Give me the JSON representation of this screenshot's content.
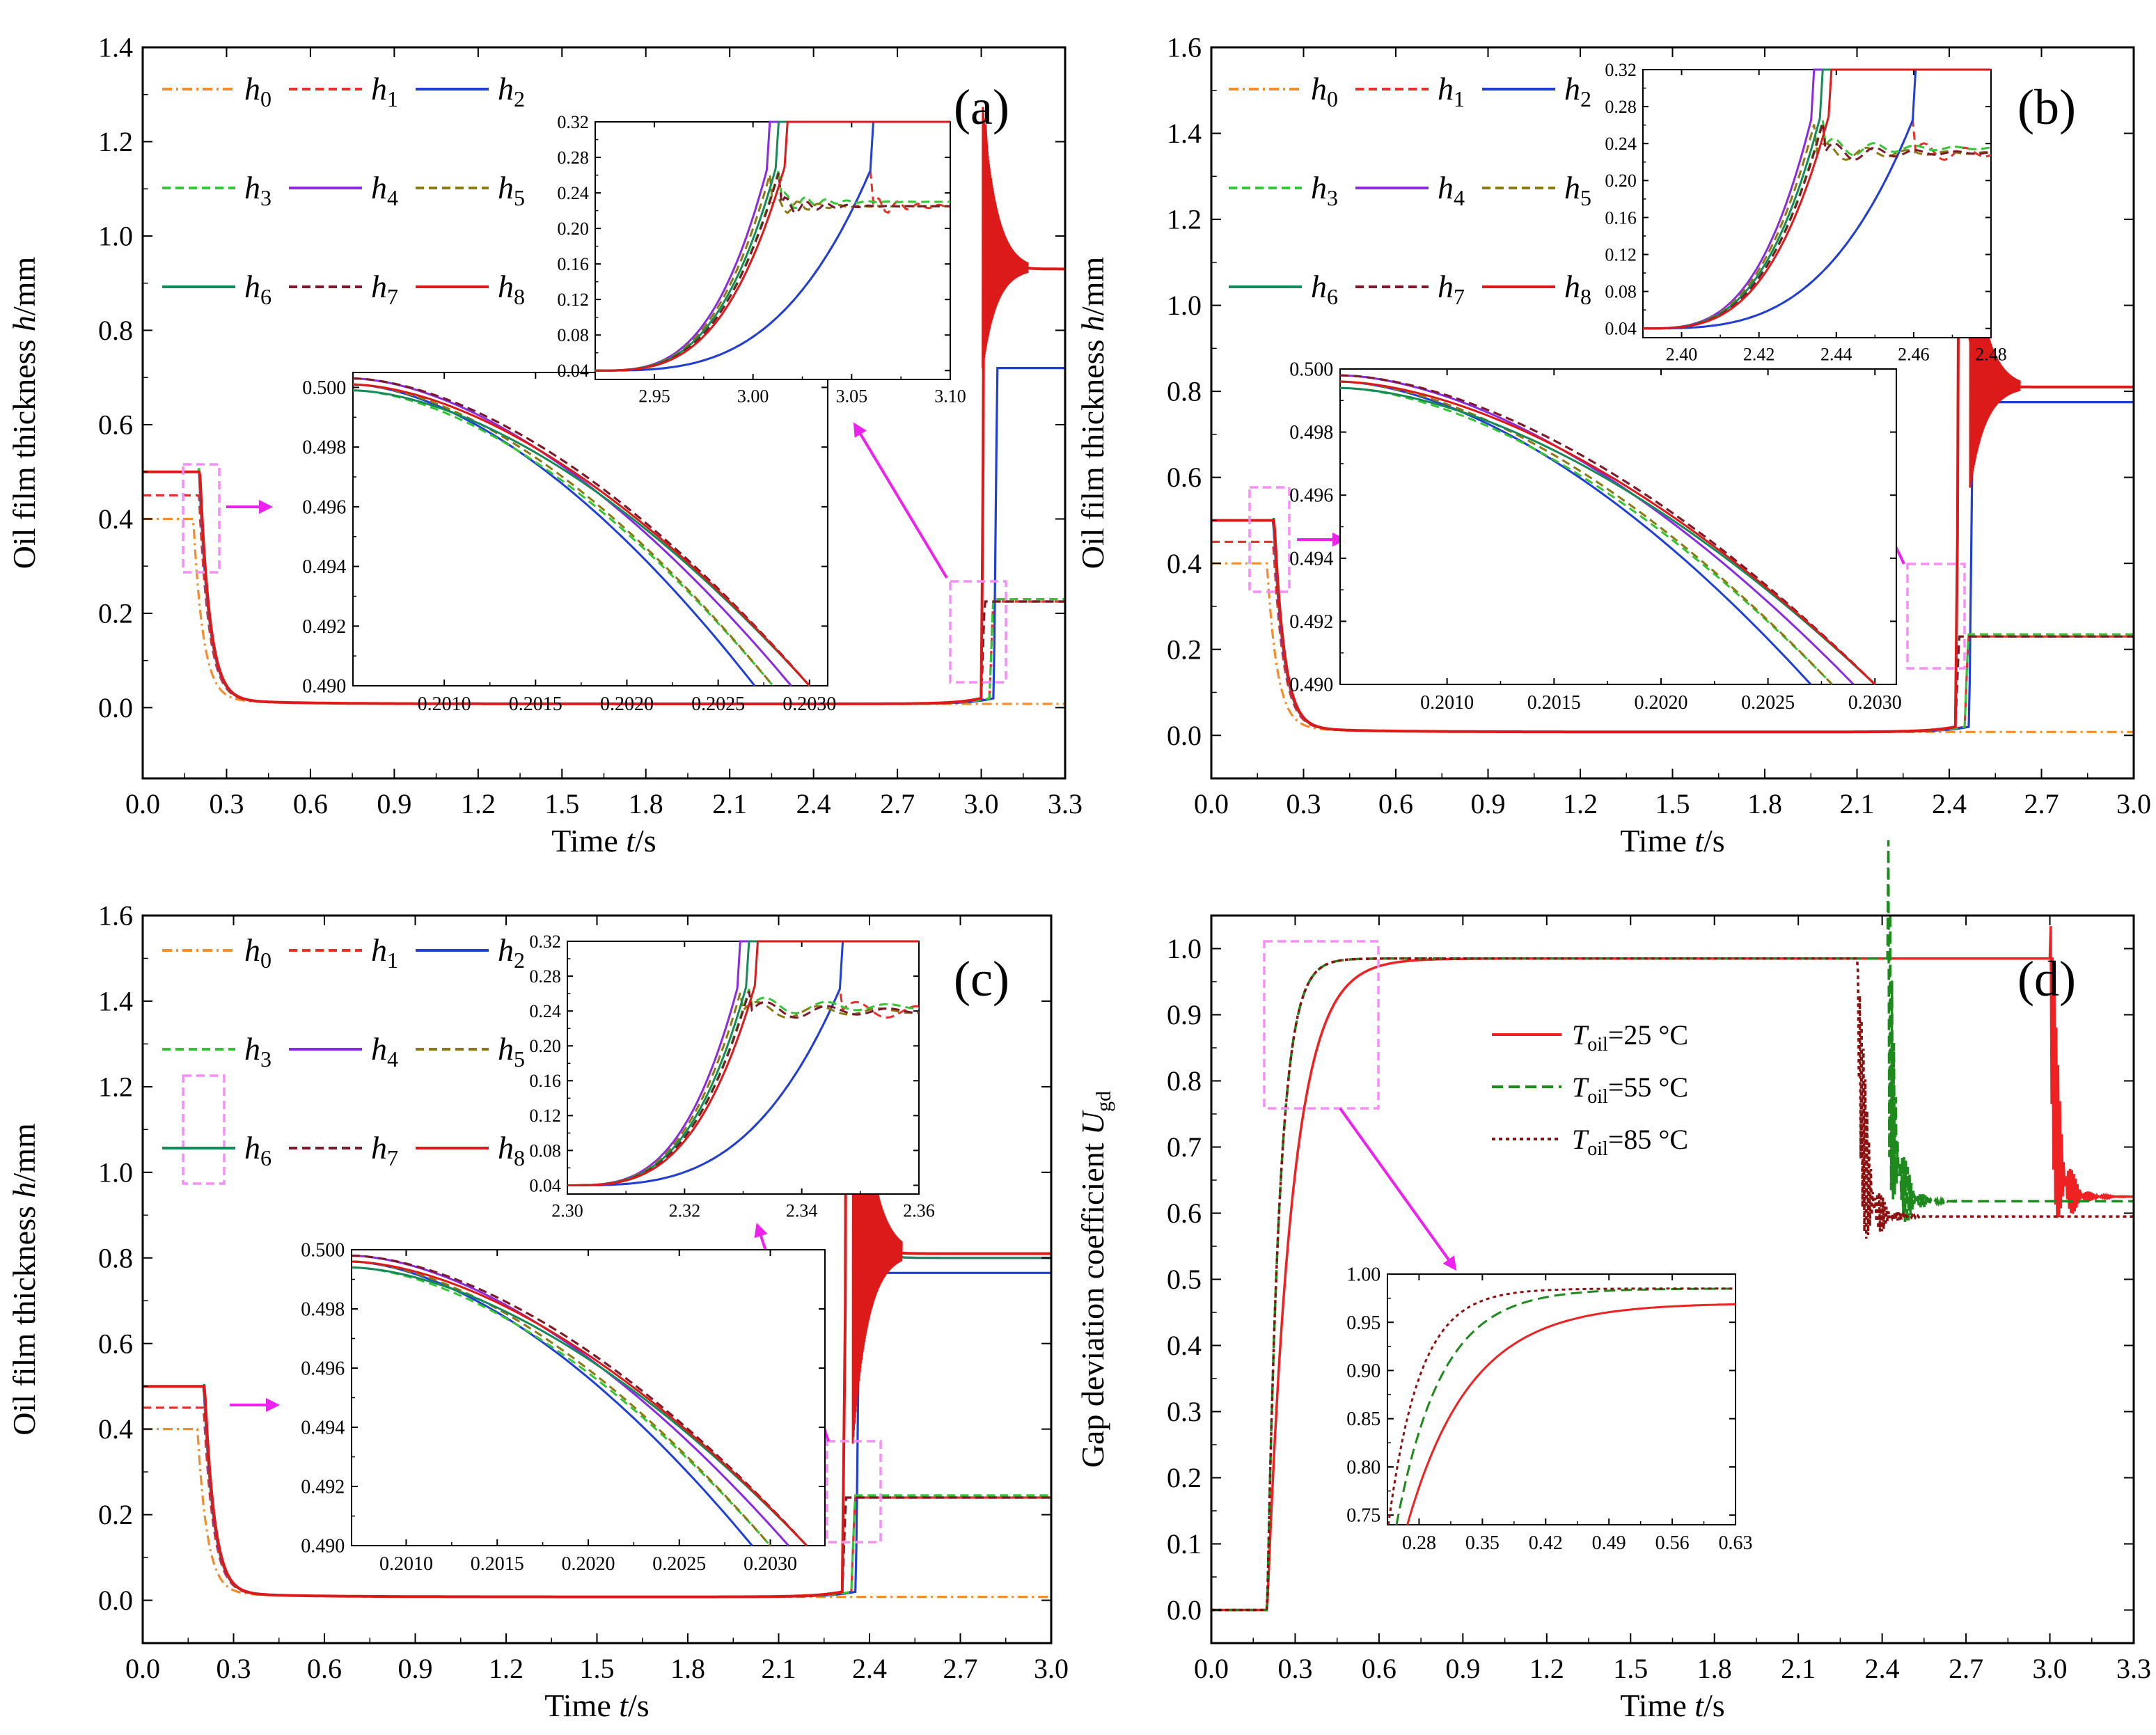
{
  "figure": {
    "colors": {
      "h0": "#f28e2b",
      "h1": "#e8302a",
      "h2": "#1f3fd6",
      "h3": "#34c534",
      "h4": "#8a2be2",
      "h5": "#8b7a14",
      "h6": "#168a5a",
      "h7": "#7b1a2a",
      "h8": "#dd1a1a",
      "t25": "#ee2222",
      "t55": "#1e8a1e",
      "t85": "#8b1010",
      "zoom_box": "#f58ef5",
      "arrow": "#ee22ee"
    }
  },
  "chart_data": [
    {
      "id": "a",
      "type": "line",
      "panel_label": "(a)",
      "xlabel": "Time t/s",
      "ylabel": "Oil film thickness h/mm",
      "xlim": [
        0,
        3.3
      ],
      "ylim": [
        -0.15,
        1.4
      ],
      "xticks": [
        "0.0",
        "0.3",
        "0.6",
        "0.9",
        "1.2",
        "1.5",
        "1.8",
        "2.1",
        "2.4",
        "2.7",
        "3.0",
        "3.3"
      ],
      "yticks": [
        "0.0",
        "0.2",
        "0.4",
        "0.6",
        "0.8",
        "1.0",
        "1.2",
        "1.4"
      ],
      "legend": [
        "h0",
        "h1",
        "h2",
        "h3",
        "h4",
        "h5",
        "h6",
        "h7",
        "h8"
      ],
      "params": {
        "t0": 0.2,
        "tau": 0.035,
        "t_rise": 3.0,
        "rise_k": 13,
        "final_h0": 0.005,
        "initial": {
          "h0": 0.4,
          "h1": 0.45,
          "h2": 0.5,
          "h3": 0.5,
          "h4": 0.5,
          "h5": 0.5,
          "h6": 0.5,
          "h7": 0.5,
          "h8": 0.5
        },
        "final": {
          "h0": 0.005,
          "h1": 0.225,
          "h2": 0.72,
          "h3": 0.23,
          "h4": 0.93,
          "h5": 0.225,
          "h6": 0.93,
          "h7": 0.225,
          "h8": 0.93
        },
        "peak": 1.28,
        "peak_t": 3.005
      },
      "inset_left": {
        "xlim": [
          0.2005,
          0.2031
        ],
        "ylim": [
          0.49,
          0.5005
        ],
        "xticks": [
          "0.2010",
          "0.2015",
          "0.2020",
          "0.2025",
          "0.2030"
        ],
        "yticks": [
          "0.490",
          "0.492",
          "0.494",
          "0.496",
          "0.498",
          "0.500"
        ]
      },
      "inset_right": {
        "xlim": [
          2.92,
          3.1
        ],
        "ylim": [
          0.03,
          0.32
        ],
        "xticks": [
          "2.95",
          "3.00",
          "3.05",
          "3.10"
        ],
        "yticks": [
          "0.04",
          "0.08",
          "0.12",
          "0.16",
          "0.20",
          "0.24",
          "0.28",
          "0.32"
        ]
      }
    },
    {
      "id": "b",
      "type": "line",
      "panel_label": "(b)",
      "xlabel": "Time t/s",
      "ylabel": "Oil film thickness h/mm",
      "xlim": [
        0,
        3.0
      ],
      "ylim": [
        -0.1,
        1.6
      ],
      "xticks": [
        "0.0",
        "0.3",
        "0.6",
        "0.9",
        "1.2",
        "1.5",
        "1.8",
        "2.1",
        "2.4",
        "2.7",
        "3.0"
      ],
      "yticks": [
        "0.0",
        "0.2",
        "0.4",
        "0.6",
        "0.8",
        "1.0",
        "1.2",
        "1.4",
        "1.6"
      ],
      "legend": [
        "h0",
        "h1",
        "h2",
        "h3",
        "h4",
        "h5",
        "h6",
        "h7",
        "h8"
      ],
      "params": {
        "t0": 0.2,
        "tau": 0.033,
        "t_rise": 2.42,
        "rise_k": 15,
        "final_h0": 0.005,
        "initial": {
          "h0": 0.4,
          "h1": 0.45,
          "h2": 0.5,
          "h3": 0.5,
          "h4": 0.5,
          "h5": 0.5,
          "h6": 0.5,
          "h7": 0.5,
          "h8": 0.5
        },
        "final": {
          "h0": 0.005,
          "h1": 0.23,
          "h2": 0.775,
          "h3": 0.235,
          "h4": 0.81,
          "h5": 0.23,
          "h6": 0.81,
          "h7": 0.23,
          "h8": 0.81
        },
        "peak": 1.2,
        "peak_t": 2.468
      },
      "inset_left": {
        "xlim": [
          0.2005,
          0.2031
        ],
        "ylim": [
          0.49,
          0.5
        ],
        "xticks": [
          "0.2010",
          "0.2015",
          "0.2020",
          "0.2025",
          "0.2030"
        ],
        "yticks": [
          "0.490",
          "0.492",
          "0.494",
          "0.496",
          "0.498",
          "0.500"
        ]
      },
      "inset_right": {
        "xlim": [
          2.39,
          2.48
        ],
        "ylim": [
          0.03,
          0.32
        ],
        "xticks": [
          "2.40",
          "2.42",
          "2.44",
          "2.46",
          "2.48"
        ],
        "yticks": [
          "0.04",
          "0.08",
          "0.12",
          "0.16",
          "0.20",
          "0.24",
          "0.28",
          "0.32"
        ]
      }
    },
    {
      "id": "c",
      "type": "line",
      "panel_label": "(c)",
      "xlabel": "Time t/s",
      "ylabel": "Oil film thickness h/mm",
      "xlim": [
        0,
        3.0
      ],
      "ylim": [
        -0.1,
        1.6
      ],
      "xticks": [
        "0.0",
        "0.3",
        "0.6",
        "0.9",
        "1.2",
        "1.5",
        "1.8",
        "2.1",
        "2.4",
        "2.7",
        "3.0"
      ],
      "yticks": [
        "0.0",
        "0.2",
        "0.4",
        "0.6",
        "0.8",
        "1.0",
        "1.2",
        "1.4",
        "1.6"
      ],
      "legend": [
        "h0",
        "h1",
        "h2",
        "h3",
        "h4",
        "h5",
        "h6",
        "h7",
        "h8"
      ],
      "params": {
        "t0": 0.2,
        "tau": 0.032,
        "t_rise": 2.31,
        "rise_k": 16,
        "final_h0": 0.005,
        "initial": {
          "h0": 0.4,
          "h1": 0.45,
          "h2": 0.5,
          "h3": 0.5,
          "h4": 0.5,
          "h5": 0.5,
          "h6": 0.5,
          "h7": 0.5,
          "h8": 0.5
        },
        "final": {
          "h0": 0.005,
          "h1": 0.24,
          "h2": 0.765,
          "h3": 0.245,
          "h4": 0.8,
          "h5": 0.24,
          "h6": 0.8,
          "h7": 0.24,
          "h8": 0.81
        },
        "peak": 1.55,
        "peak_t": 2.345
      },
      "inset_left": {
        "xlim": [
          0.2007,
          0.2033
        ],
        "ylim": [
          0.49,
          0.5
        ],
        "xticks": [
          "0.2010",
          "0.2015",
          "0.2020",
          "0.2025",
          "0.2030"
        ],
        "yticks": [
          "0.490",
          "0.492",
          "0.494",
          "0.496",
          "0.498",
          "0.500"
        ]
      },
      "inset_right": {
        "xlim": [
          2.3,
          2.36
        ],
        "ylim": [
          0.03,
          0.32
        ],
        "xticks": [
          "2.30",
          "2.32",
          "2.34",
          "2.36"
        ],
        "yticks": [
          "0.04",
          "0.08",
          "0.12",
          "0.16",
          "0.20",
          "0.24",
          "0.28",
          "0.32"
        ]
      }
    },
    {
      "id": "d",
      "type": "line",
      "panel_label": "(d)",
      "xlabel": "Time t/s",
      "ylabel": "Gap deviation coefficient Ugd",
      "xlim": [
        0,
        3.3
      ],
      "ylim": [
        -0.05,
        1.05
      ],
      "xticks": [
        "0.0",
        "0.3",
        "0.6",
        "0.9",
        "1.2",
        "1.5",
        "1.8",
        "2.1",
        "2.4",
        "2.7",
        "3.0",
        "3.3"
      ],
      "yticks": [
        "0.0",
        "0.1",
        "0.2",
        "0.3",
        "0.4",
        "0.5",
        "0.6",
        "0.7",
        "0.8",
        "0.9",
        "1.0"
      ],
      "series": [
        {
          "name": "Toil=25 °C",
          "plateau": 0.985,
          "settle": 0.625,
          "t_drop": 3.0
        },
        {
          "name": "Toil=55 °C",
          "plateau": 0.985,
          "settle": 0.618,
          "t_drop": 2.42
        },
        {
          "name": "Toil=85 °C",
          "plateau": 0.985,
          "settle": 0.595,
          "t_drop": 2.31
        }
      ],
      "inset": {
        "xlim": [
          0.245,
          0.63
        ],
        "ylim": [
          0.74,
          1.0
        ],
        "xticks": [
          "0.28",
          "0.35",
          "0.42",
          "0.49",
          "0.56",
          "0.63"
        ],
        "yticks": [
          "0.75",
          "0.80",
          "0.85",
          "0.90",
          "0.95",
          "1.00"
        ]
      }
    }
  ]
}
